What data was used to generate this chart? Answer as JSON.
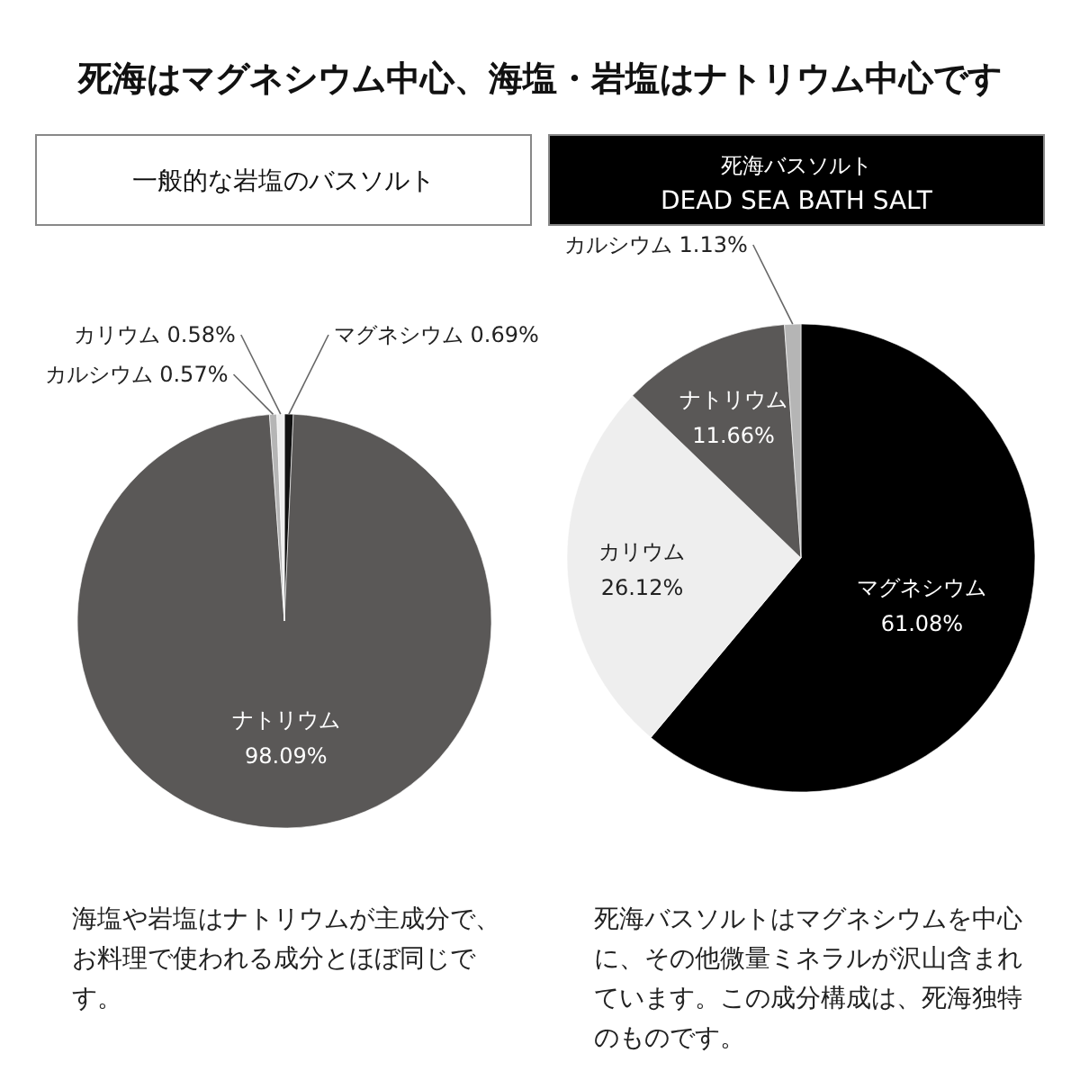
{
  "chart_data": [
    {
      "type": "pie",
      "title": "死海はマグネシウム中心、海塩・岩塩はナトリウム中心です",
      "subtitle": "一般的な岩塩のバスソルト",
      "categories": [
        "マグネシウム",
        "ナトリウム",
        "カルシウム",
        "カリウム"
      ],
      "values": [
        0.69,
        98.09,
        0.57,
        0.58
      ],
      "value_labels": [
        "0.69%",
        "98.09%",
        "0.57%",
        "0.58%"
      ],
      "colors": [
        "#111111",
        "#5a5857",
        "#b5b5b5",
        "#eeeeee"
      ],
      "annotations": [
        "海塩や岩塩はナトリウムが主成分で、お料理で使われる成分とほぼ同じです。"
      ]
    },
    {
      "type": "pie",
      "subtitle": "死海バスソルト\nDEAD SEA BATH SALT",
      "categories": [
        "マグネシウム",
        "カリウム",
        "ナトリウム",
        "カルシウム"
      ],
      "values": [
        61.08,
        26.12,
        11.66,
        1.13
      ],
      "value_labels": [
        "61.08%",
        "26.12%",
        "11.66%",
        "1.13%"
      ],
      "colors": [
        "#000000",
        "#eeeeee",
        "#5a5857",
        "#b5b5b5"
      ],
      "annotations": [
        "死海バスソルトはマグネシウムを中心に、その他微量ミネラルが沢山含まれています。この成分構成は、死海独特のものです。"
      ]
    }
  ]
}
